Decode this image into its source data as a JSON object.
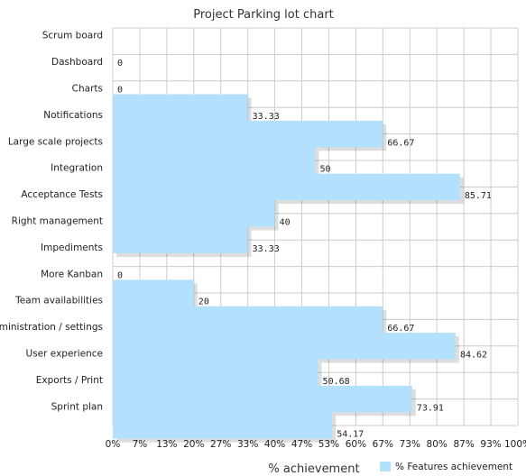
{
  "chart_data": {
    "type": "bar",
    "orientation": "horizontal",
    "title": "Project Parking lot chart",
    "xlabel": "% achievement",
    "ylabel": "",
    "xlim": [
      0,
      100
    ],
    "x_ticks": [
      "0%",
      "7%",
      "13%",
      "20%",
      "27%",
      "33%",
      "40%",
      "47%",
      "53%",
      "60%",
      "67%",
      "73%",
      "80%",
      "87%",
      "93%",
      "100%"
    ],
    "grid": true,
    "legend_position": "bottom-right",
    "categories": [
      "Scrum board",
      "Dashboard",
      "Charts",
      "Notifications",
      "Large scale projects",
      "Integration",
      "Acceptance Tests",
      "Right management",
      "Impediments",
      "More Kanban",
      "Team availabilities",
      "Administration / settings",
      "User experience",
      "Exports / Print",
      "Sprint plan"
    ],
    "series": [
      {
        "name": "% Features achievement",
        "color": "#b3e0fd",
        "values": [
          0,
          0,
          33.33,
          66.67,
          50,
          85.71,
          40,
          33.33,
          0,
          20,
          66.67,
          84.62,
          50.68,
          73.91,
          54.17
        ],
        "value_labels": [
          "0",
          "0",
          "33.33",
          "66.67",
          "50",
          "85.71",
          "40",
          "33.33",
          "0",
          "20",
          "66.67",
          "84.62",
          "50.68",
          "73.91",
          "54.17"
        ]
      }
    ]
  }
}
